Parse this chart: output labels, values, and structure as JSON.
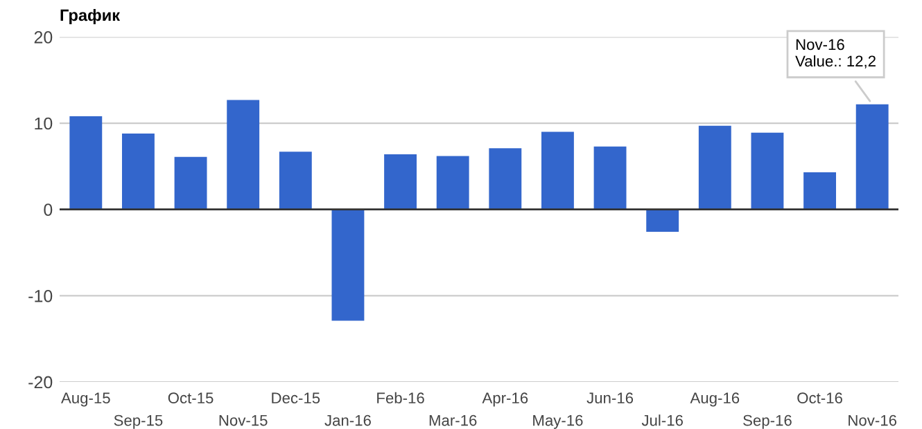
{
  "chart_data": {
    "type": "bar",
    "title": "График",
    "categories": [
      "Aug-15",
      "Sep-15",
      "Oct-15",
      "Nov-15",
      "Dec-15",
      "Jan-16",
      "Feb-16",
      "Mar-16",
      "Apr-16",
      "May-16",
      "Jun-16",
      "Jul-16",
      "Aug-16",
      "Sep-16",
      "Oct-16",
      "Nov-16"
    ],
    "values": [
      10.8,
      8.8,
      6.1,
      12.7,
      6.7,
      -12.9,
      6.4,
      6.2,
      7.1,
      9.0,
      7.3,
      -2.6,
      9.7,
      8.9,
      4.3,
      12.2
    ],
    "color": "#3366cc",
    "ylim": [
      -20,
      20
    ],
    "yticks": [
      -20,
      -10,
      0,
      10,
      20
    ],
    "grid": "y",
    "legend": false,
    "annotations": [
      {
        "text": "Nov-16\nValue.: 12,2",
        "x": "Nov-16",
        "y": 12.2
      }
    ]
  }
}
